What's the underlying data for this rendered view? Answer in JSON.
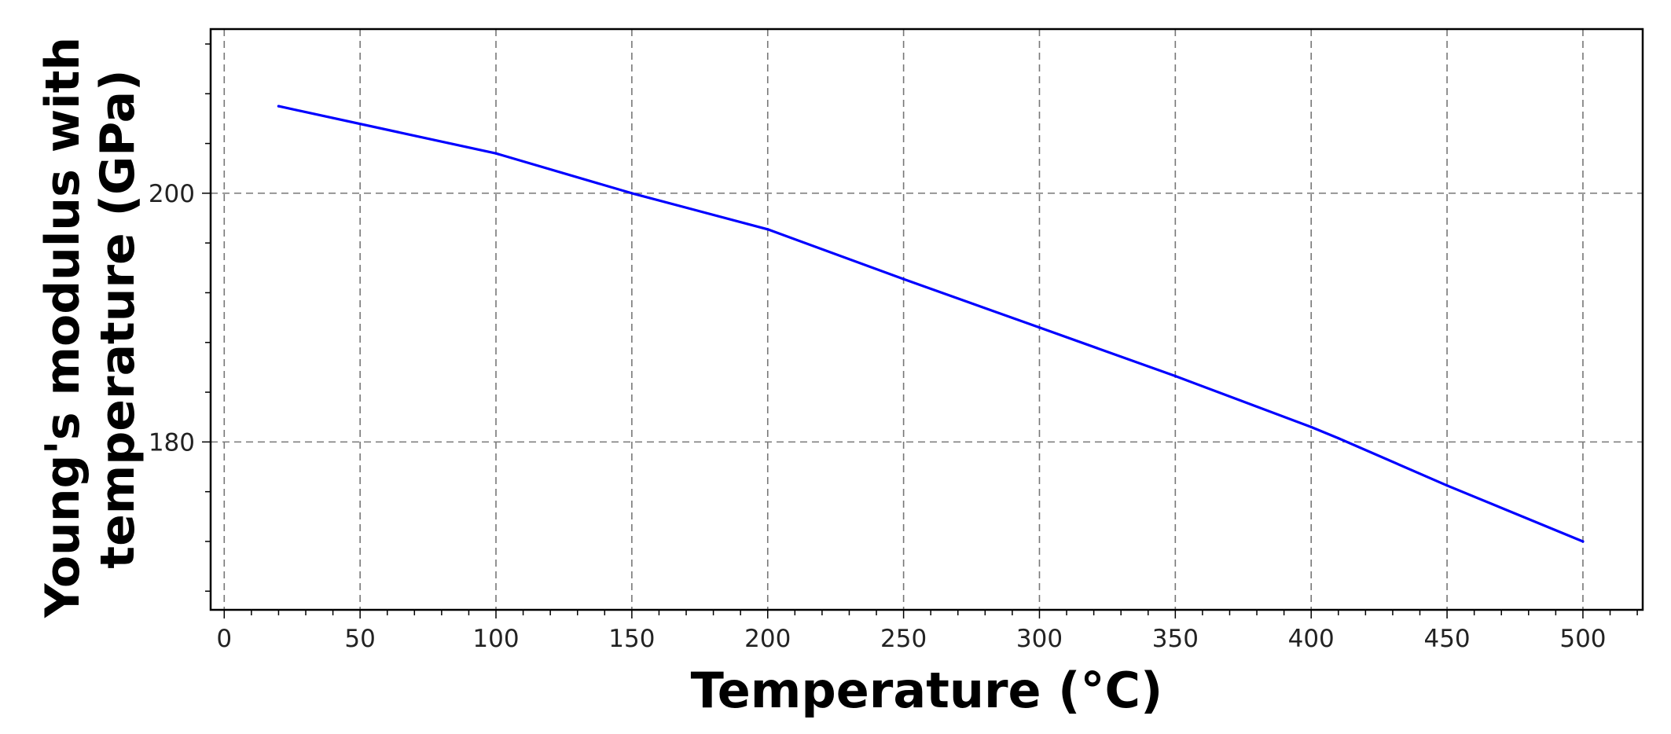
{
  "chart_data": {
    "type": "line",
    "xlabel": "Temperature (°C)",
    "ylabel_lines": [
      "Young's modulus with",
      "temperature (GPa)"
    ],
    "xlim": [
      -5,
      522
    ],
    "ylim": [
      166.5,
      213.2
    ],
    "x_ticks": [
      0,
      50,
      100,
      150,
      200,
      250,
      300,
      350,
      400,
      450,
      500
    ],
    "x_tick_labels": [
      "0",
      "50",
      "100",
      "150",
      "200",
      "250",
      "300",
      "350",
      "400",
      "450",
      "500"
    ],
    "x_minor_step": 10,
    "y_ticks": [
      180,
      200
    ],
    "y_tick_labels": [
      "180",
      "200"
    ],
    "y_minor_step": 4,
    "grid": true,
    "series": [
      {
        "color": "#0000ff",
        "x": [
          20,
          100,
          150,
          200,
          250,
          300,
          350,
          400,
          410,
          450,
          500
        ],
        "y": [
          207,
          203.2,
          200,
          197.1,
          193.1,
          189.2,
          185.3,
          181.2,
          180.3,
          176.5,
          172
        ]
      }
    ]
  }
}
